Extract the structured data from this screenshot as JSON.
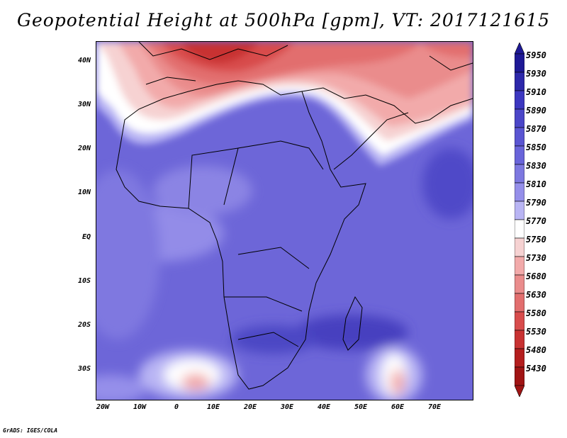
{
  "title": "Geopotential Height at 500hPa [gpm], VT: 2017121615",
  "credit": "GrADS: IGES/COLA",
  "map": {
    "variable": "Geopotential Height at 500hPa",
    "units": "gpm",
    "valid_time": "2017121615",
    "lat_labels": [
      "40N",
      "30N",
      "20N",
      "10N",
      "EQ",
      "10S",
      "20S",
      "30S"
    ],
    "lon_labels": [
      "20W",
      "10W",
      "0",
      "10E",
      "20E",
      "30E",
      "40E",
      "50E",
      "60E",
      "70E"
    ],
    "lon_range": [
      -22,
      80
    ],
    "lat_range": [
      -37,
      44
    ],
    "colorbar_levels": [
      "5950",
      "5930",
      "5910",
      "5890",
      "5870",
      "5850",
      "5830",
      "5810",
      "5790",
      "5770",
      "5750",
      "5730",
      "5680",
      "5630",
      "5580",
      "5530",
      "5480",
      "5430"
    ],
    "colorbar_colors": [
      "#1e1996",
      "#2d28aa",
      "#3c37c0",
      "#4b46c8",
      "#5a55d2",
      "#6964da",
      "#7d78e0",
      "#958fea",
      "#b9b5f4",
      "#ffffff",
      "#f6d2d2",
      "#f2aaaa",
      "#ea8c8c",
      "#e26e6e",
      "#d84c4c",
      "#c83232",
      "#b41e1e",
      "#a01414"
    ]
  }
}
